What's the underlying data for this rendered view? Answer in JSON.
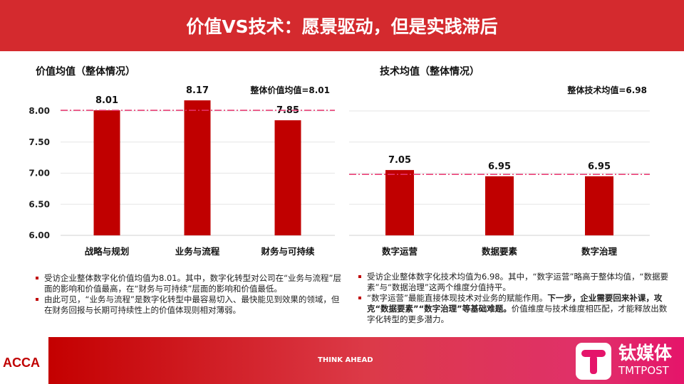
{
  "header": {
    "title": "价值VS技术：愿景驱动，但是实践滞后"
  },
  "chart_data": [
    {
      "type": "bar",
      "title": "价值均值（整体情况）",
      "categories": [
        "战略与规划",
        "业务与流程",
        "财务与可持续"
      ],
      "values": [
        8.01,
        8.17,
        7.85
      ],
      "data_labels": [
        "8.01",
        "8.17",
        "7.85"
      ],
      "ylim": [
        6,
        8.5
      ],
      "yticks": [
        "6.00",
        "6.50",
        "7.00",
        "7.50",
        "8.00"
      ],
      "reference_line": {
        "value": 8.01,
        "label": "整体价值均值=8.01",
        "color": "#e8336e"
      },
      "bar_color": "#c00000",
      "grid": true
    },
    {
      "type": "bar",
      "title": "技术均值（整体情况）",
      "categories": [
        "数字运营",
        "数据要素",
        "数字治理"
      ],
      "values": [
        7.05,
        6.95,
        6.95
      ],
      "data_labels": [
        "7.05",
        "6.95",
        "6.95"
      ],
      "ylim": [
        6,
        8.5
      ],
      "yticks": [],
      "reference_line": {
        "value": 6.98,
        "label": "整体技术均值=6.98",
        "color": "#e8336e"
      },
      "bar_color": "#c00000",
      "grid": true
    }
  ],
  "notes_left": [
    "受访企业整体数字化价值均值为8.01。其中，数字化转型对公司在“业务与流程”层面的影响和价值最高，在“财务与可持续”层面的影响和价值最低。",
    "由此可见，“业务与流程”是数字化转型中最容易切入、最快能见到效果的领域，但在财务回报与长期可持续性上的价值体现则相对薄弱。"
  ],
  "notes_right": {
    "b1": "受访企业整体数字化技术均值为6.98。其中，“数字运营”略高于整体均值，“数据要素”与“数据治理”这两个维度分值持平。",
    "b2_pre": "“数字运营”最能直接体现技术对业务的赋能作用。",
    "b2_bold": "下一步，企业需要回来补课，攻克“数据要素”“数字治理”等基础难题。",
    "b2_post": "价值维度与技术维度相匹配，才能释放出数字化转型的更多潜力。"
  },
  "footer": {
    "left_logo": "ACCA",
    "tagline": "THINK AHEAD",
    "brand_cn": "钛媒体",
    "brand_en": "TMTPOST"
  }
}
